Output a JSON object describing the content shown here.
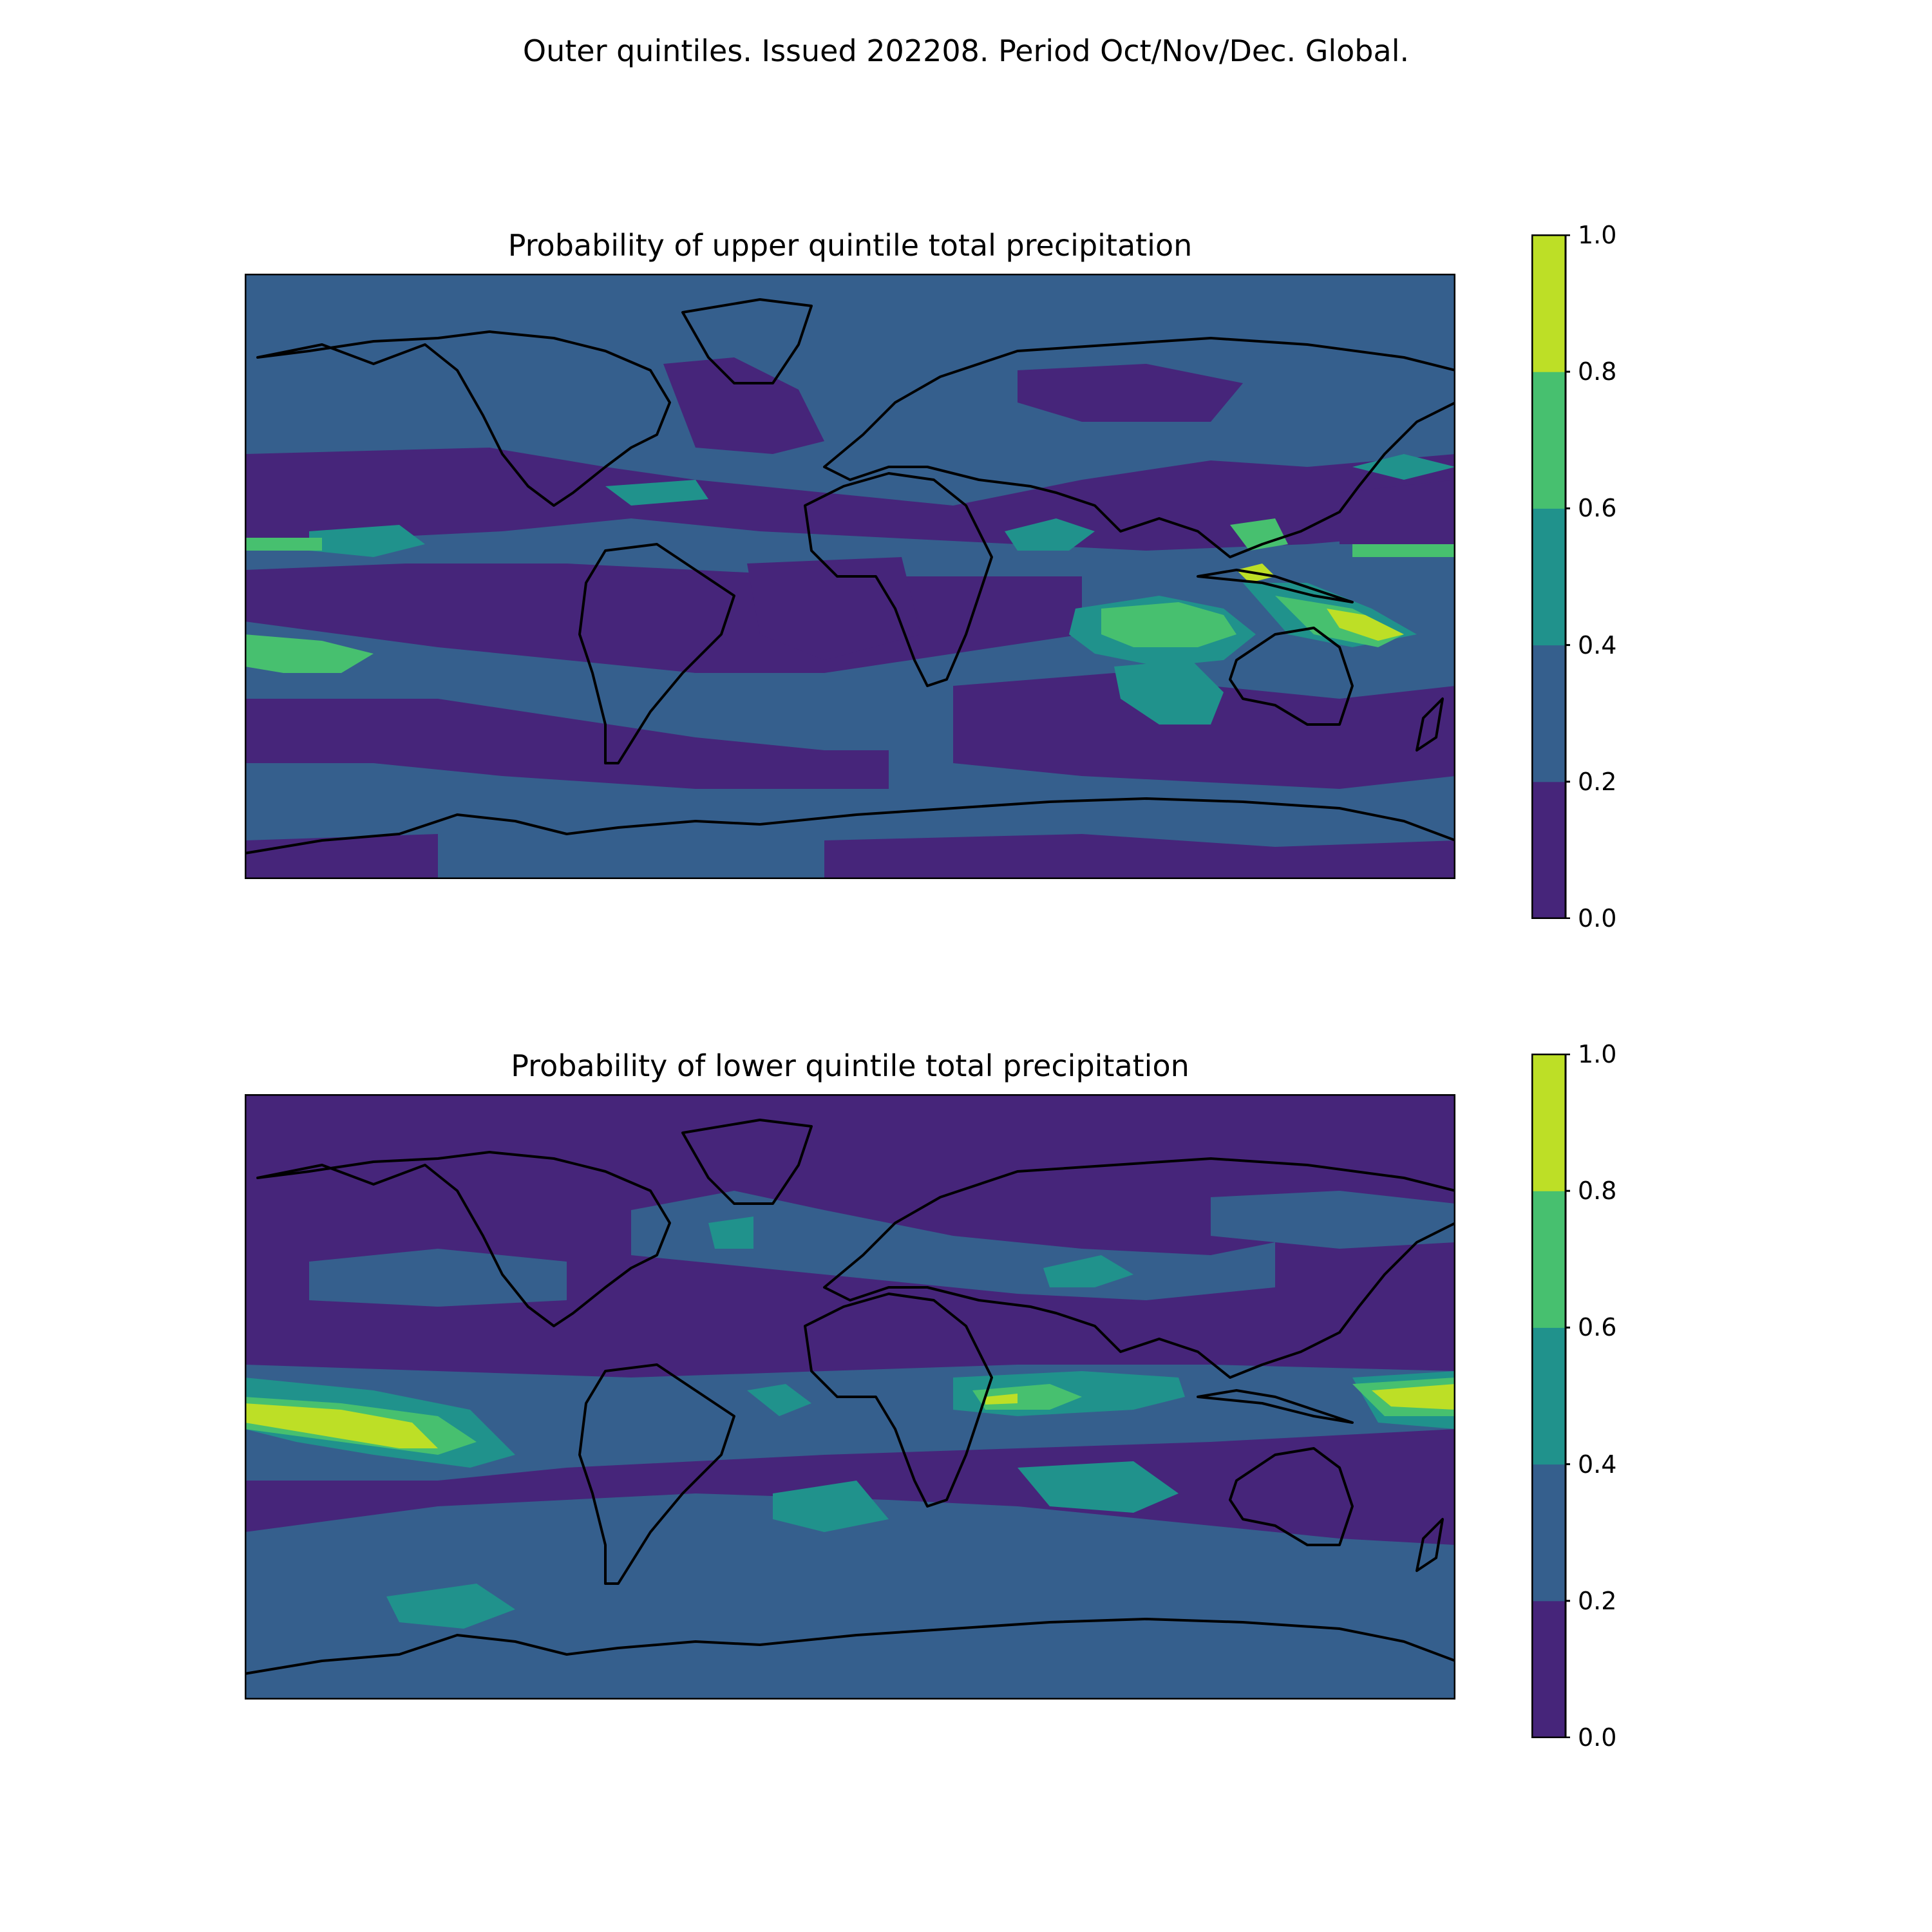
{
  "figure": {
    "suptitle": "Outer quintiles. Issued 202208. Period Oct/Nov/Dec. Global."
  },
  "colorbar": {
    "levels": [
      0.0,
      0.2,
      0.4,
      0.6,
      0.8,
      1.0
    ],
    "tick_labels": [
      "0.0",
      "0.2",
      "0.4",
      "0.6",
      "0.8",
      "1.0"
    ],
    "colors": [
      "#440154",
      "#3b528b",
      "#21918c",
      "#5ec962",
      "#c5e21f"
    ],
    "band_colors_drawn": [
      "#46257a",
      "#355f8d",
      "#20928c",
      "#47c06f",
      "#bddf26"
    ]
  },
  "panels": [
    {
      "id": "upper",
      "title": "Probability of upper quintile total precipitation",
      "lon_range": [
        -180,
        180
      ],
      "lat_range": [
        -90,
        90
      ],
      "background_class": "0.2-0.4"
    },
    {
      "id": "lower",
      "title": "Probability of lower quintile total precipitation",
      "lon_range": [
        -180,
        180
      ],
      "lat_range": [
        -90,
        90
      ],
      "background_class": "0.0-0.2"
    }
  ]
}
